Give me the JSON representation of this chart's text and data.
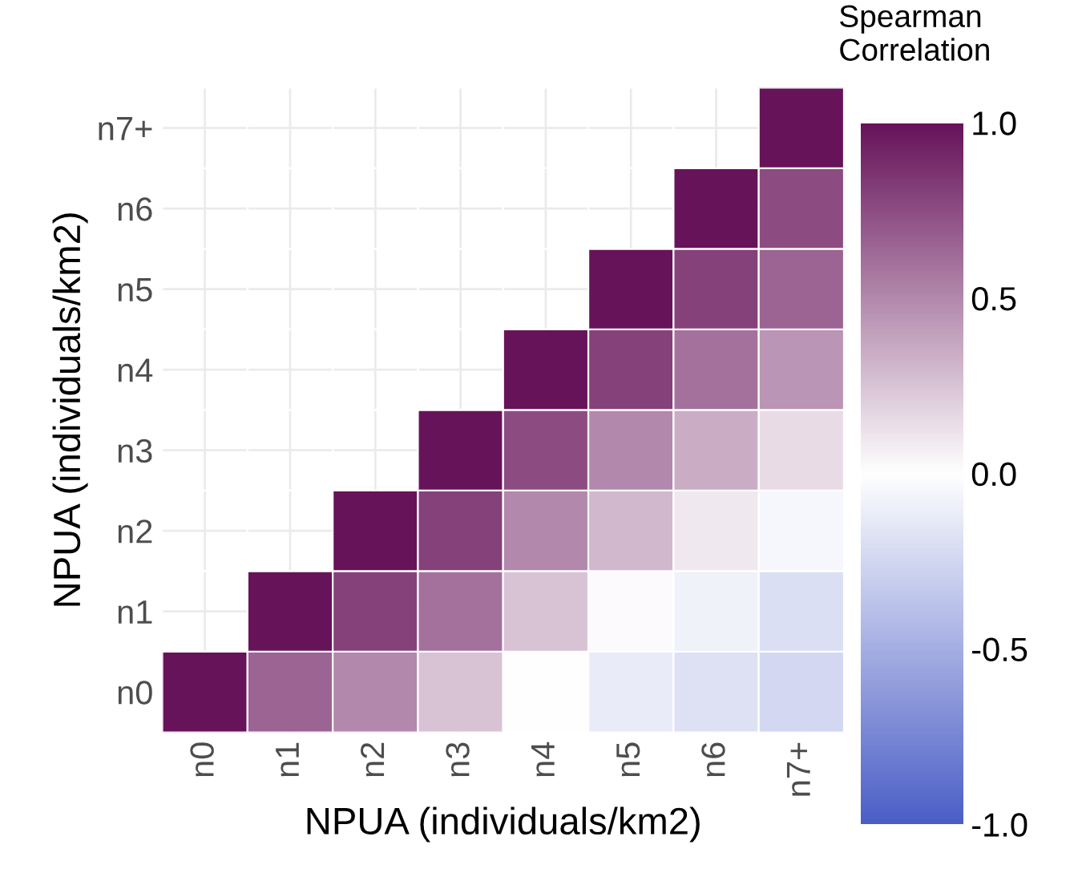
{
  "chart_data": {
    "type": "heatmap",
    "xlabel": "NPUA (individuals/km2)",
    "ylabel": "NPUA (individuals/km2)",
    "clabel": "Spearman\nCorrelation",
    "categories": [
      "n0",
      "n1",
      "n2",
      "n3",
      "n4",
      "n5",
      "n6",
      "n7+"
    ],
    "y_categories": [
      "n7+",
      "n6",
      "n5",
      "n4",
      "n3",
      "n2",
      "n1",
      "n0"
    ],
    "cells": [
      [
        null,
        null,
        null,
        null,
        null,
        null,
        null,
        1
      ],
      [
        null,
        null,
        null,
        null,
        null,
        null,
        1,
        0.75
      ],
      [
        null,
        null,
        null,
        null,
        null,
        1,
        0.8,
        0.65
      ],
      [
        null,
        null,
        null,
        null,
        1,
        0.8,
        0.6,
        0.45
      ],
      [
        null,
        null,
        null,
        1,
        0.75,
        0.5,
        0.35,
        0.15
      ],
      [
        null,
        null,
        1,
        0.8,
        0.5,
        0.3,
        0.1,
        -0.05
      ],
      [
        null,
        1,
        0.8,
        0.6,
        0.25,
        0.02,
        -0.08,
        -0.2
      ],
      [
        1,
        0.65,
        0.5,
        0.25,
        0.0,
        -0.12,
        -0.18,
        -0.25
      ]
    ],
    "colors": [
      "#4b5ec6",
      "#ffffff",
      "#67135a"
    ],
    "clim": [
      -1,
      1
    ],
    "cticks": [
      {
        "value": -1,
        "label": "-1.0"
      },
      {
        "value": -0.5,
        "label": "-0.5"
      },
      {
        "value": 0,
        "label": "0.0"
      },
      {
        "value": 0.5,
        "label": "0.5"
      },
      {
        "value": 1,
        "label": "1.0"
      }
    ],
    "grid": true
  }
}
